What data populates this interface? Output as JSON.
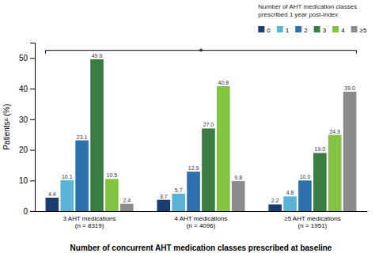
{
  "chart_data": {
    "type": "bar",
    "xlabel": "Number of concurrent AHT medication classes prescribed at baseline",
    "ylabel": "Patientsᵃ (%)",
    "legend_title": "Number of AHT medication classes\nprescribed 1 year post-index",
    "categories": [
      "3 AHT medications\n(n = 8319)",
      "4 AHT medications\n(n = 4096)",
      "≥5 AHT medications\n(n = 1951)"
    ],
    "series": [
      {
        "name": "0",
        "color": "#1a3d6e",
        "values": [
          4.4,
          3.7,
          2.2
        ],
        "value_labels": [
          "4.4",
          "3.7",
          "2.2"
        ]
      },
      {
        "name": "1",
        "color": "#5ab4d6",
        "values": [
          10.1,
          5.7,
          4.8
        ],
        "value_labels": [
          "10.1",
          "5.7",
          "4.8"
        ]
      },
      {
        "name": "2",
        "color": "#2e6fad",
        "values": [
          23.1,
          12.9,
          10.0
        ],
        "value_labels": [
          "23.1",
          "12.9",
          "10.0"
        ]
      },
      {
        "name": "3",
        "color": "#3a7d44",
        "values": [
          49.6,
          27.0,
          19.0
        ],
        "value_labels": [
          "49.6",
          "27.0",
          "19.0"
        ]
      },
      {
        "name": "4",
        "color": "#82c341",
        "values": [
          10.5,
          40.8,
          24.9
        ],
        "value_labels": [
          "10.5",
          "40.8",
          "24.9"
        ]
      },
      {
        "name": "≥5",
        "color": "#8c8c8c",
        "values": [
          2.4,
          9.8,
          39.0
        ],
        "value_labels": [
          "2.4",
          "9.8",
          "39.0"
        ]
      }
    ],
    "ylim": [
      0,
      55
    ],
    "yticks": [
      0,
      10,
      20,
      30,
      40,
      50
    ],
    "grid": false,
    "legend": "upper right",
    "data_labels": true,
    "annotations": [
      {
        "text": "*",
        "y": 52.5
      }
    ]
  }
}
